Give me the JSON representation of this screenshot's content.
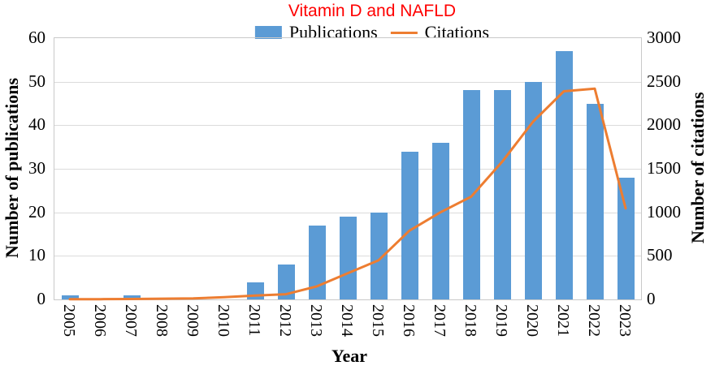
{
  "title": "Vitamin D and NAFLD",
  "legend": {
    "publications": "Publications",
    "citations": "Citations"
  },
  "axes": {
    "left_title": "Number of publications",
    "right_title": "Number of citations",
    "x_title": "Year",
    "left_ticks": [
      0,
      10,
      20,
      30,
      40,
      50,
      60
    ],
    "right_ticks": [
      0,
      500,
      1000,
      1500,
      2000,
      2500,
      3000
    ]
  },
  "colors": {
    "bar": "#5B9BD5",
    "line": "#ED7D31",
    "title": "#FF0000",
    "grid": "#DBDBDB",
    "plot_border": "#C9C9C9",
    "text": "#000000"
  },
  "chart_data": {
    "type": "bar",
    "subtype": "bar+line combo, dual y-axis",
    "title": "Vitamin D and NAFLD",
    "xlabel": "Year",
    "ylabel_left": "Number of publications",
    "ylabel_right": "Number of citations",
    "ylim_left": [
      0,
      60
    ],
    "ylim_right": [
      0,
      3000
    ],
    "grid": true,
    "legend_position": "top",
    "categories": [
      "2005",
      "2006",
      "2007",
      "2008",
      "2009",
      "2010",
      "2011",
      "2012",
      "2013",
      "2014",
      "2015",
      "2016",
      "2017",
      "2018",
      "2019",
      "2020",
      "2021",
      "2022",
      "2023"
    ],
    "series": [
      {
        "name": "Publications",
        "type": "bar",
        "axis": "left",
        "values": [
          1,
          0,
          1,
          0,
          0,
          0,
          4,
          8,
          17,
          19,
          20,
          34,
          36,
          48,
          48,
          50,
          57,
          45,
          28
        ]
      },
      {
        "name": "Citations",
        "type": "line",
        "axis": "right",
        "values": [
          2,
          3,
          5,
          8,
          12,
          25,
          45,
          60,
          150,
          300,
          450,
          790,
          1000,
          1180,
          1580,
          2040,
          2390,
          2420,
          1045
        ]
      }
    ]
  }
}
